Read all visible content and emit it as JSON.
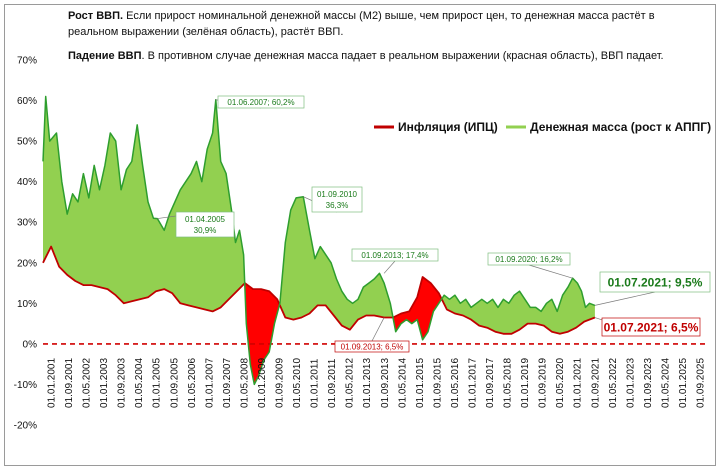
{
  "notes": {
    "growth_title": "Рост ВВП.",
    "growth_text": " Если прирост номинальной денежной массы (М2) выше, чем прирост цен,  то денежная масса растёт в реальном выражении (зелёная область), растёт ВВП.",
    "fall_title": "Падение ВВП",
    "fall_text": ". В противном случае денежная масса падает в реальном выражении (красная область), ВВП падает."
  },
  "chart_data": {
    "type": "line",
    "title": "",
    "xlabel": "",
    "ylabel": "",
    "ylim": [
      -20,
      70
    ],
    "yticks": [
      -20,
      -10,
      0,
      10,
      20,
      30,
      40,
      50,
      60,
      70
    ],
    "ytick_labels": [
      "-20%",
      "-10%",
      "0%",
      "10%",
      "20%",
      "30%",
      "40%",
      "50%",
      "60%",
      "70%"
    ],
    "xlim": [
      2001.0,
      2025.7
    ],
    "xtick_labels": [
      "01.01.2001",
      "01.09.2001",
      "01.05.2002",
      "01.01.2003",
      "01.09.2003",
      "01.05.2004",
      "01.01.2005",
      "01.09.2005",
      "01.05.2006",
      "01.01.2007",
      "01.09.2007",
      "01.05.2008",
      "01.01.2009",
      "01.09.2009",
      "01.05.2010",
      "01.01.2011",
      "01.09.2011",
      "01.05.2012",
      "01.01.2013",
      "01.09.2013",
      "01.05.2014",
      "01.01.2015",
      "01.09.2015",
      "01.05.2016",
      "01.01.2017",
      "01.09.2017",
      "01.05.2018",
      "01.01.2019",
      "01.09.2019",
      "01.05.2020",
      "01.01.2021",
      "01.09.2021",
      "01.05.2022",
      "01.01.2023",
      "01.09.2023",
      "01.05.2024",
      "01.01.2025",
      "01.09.2025"
    ],
    "grid": false,
    "legend_position": "top-right",
    "series": [
      {
        "name": "Инфляция (ИПЦ)",
        "color": "#c00000",
        "x": [
          2001.0,
          2001.3,
          2001.6,
          2001.9,
          2002.2,
          2002.5,
          2002.8,
          2003.1,
          2003.4,
          2003.7,
          2004.0,
          2004.3,
          2004.6,
          2004.9,
          2005.2,
          2005.5,
          2005.8,
          2006.1,
          2006.4,
          2006.7,
          2007.0,
          2007.3,
          2007.6,
          2007.9,
          2008.2,
          2008.5,
          2008.8,
          2009.1,
          2009.4,
          2009.7,
          2010.0,
          2010.3,
          2010.6,
          2010.9,
          2011.2,
          2011.5,
          2011.8,
          2012.1,
          2012.4,
          2012.7,
          2013.0,
          2013.3,
          2013.67,
          2014.0,
          2014.3,
          2014.6,
          2014.9,
          2015.1,
          2015.4,
          2015.7,
          2016.0,
          2016.3,
          2016.6,
          2016.9,
          2017.2,
          2017.5,
          2017.8,
          2018.1,
          2018.4,
          2018.7,
          2019.0,
          2019.3,
          2019.6,
          2019.9,
          2020.2,
          2020.5,
          2020.8,
          2021.1,
          2021.5
        ],
        "values": [
          20,
          24,
          19,
          17,
          15.5,
          14.5,
          14.5,
          14,
          13.5,
          12,
          10,
          10.5,
          11,
          11.5,
          13,
          13.5,
          12.5,
          10,
          9.5,
          9,
          8.5,
          8,
          9,
          11,
          13,
          15,
          13.5,
          13.5,
          13,
          11,
          6.5,
          6,
          6.5,
          7.5,
          9.5,
          9.5,
          7,
          4.5,
          3.5,
          6,
          7,
          7,
          6.5,
          6.5,
          7.5,
          8,
          11.5,
          16.5,
          15,
          12.5,
          8.5,
          7.5,
          7,
          6,
          4.5,
          4,
          3,
          2.5,
          2.5,
          3.5,
          5,
          5,
          4.5,
          3,
          2.5,
          3,
          4,
          5.5,
          6.5
        ]
      },
      {
        "name": "Денежная масса (рост к АППГ)",
        "color": "#2e9e2e",
        "fill": "#92d050",
        "x": [
          2001.0,
          2001.1,
          2001.25,
          2001.5,
          2001.7,
          2001.9,
          2002.1,
          2002.3,
          2002.5,
          2002.7,
          2002.9,
          2003.1,
          2003.3,
          2003.5,
          2003.7,
          2003.9,
          2004.1,
          2004.3,
          2004.5,
          2004.7,
          2004.9,
          2005.1,
          2005.25,
          2005.5,
          2005.7,
          2005.9,
          2006.1,
          2006.3,
          2006.5,
          2006.7,
          2006.9,
          2007.1,
          2007.3,
          2007.42,
          2007.6,
          2007.8,
          2008.0,
          2008.15,
          2008.3,
          2008.45,
          2008.55,
          2008.7,
          2008.85,
          2009.0,
          2009.2,
          2009.4,
          2009.6,
          2009.8,
          2010.0,
          2010.2,
          2010.4,
          2010.67,
          2010.9,
          2011.1,
          2011.3,
          2011.5,
          2011.7,
          2011.9,
          2012.1,
          2012.3,
          2012.5,
          2012.7,
          2012.9,
          2013.1,
          2013.3,
          2013.5,
          2013.67,
          2013.9,
          2014.1,
          2014.3,
          2014.5,
          2014.7,
          2014.9,
          2015.1,
          2015.3,
          2015.5,
          2015.7,
          2015.9,
          2016.1,
          2016.3,
          2016.5,
          2016.7,
          2016.9,
          2017.1,
          2017.3,
          2017.5,
          2017.7,
          2017.9,
          2018.1,
          2018.3,
          2018.5,
          2018.7,
          2018.9,
          2019.1,
          2019.3,
          2019.5,
          2019.7,
          2019.9,
          2020.1,
          2020.3,
          2020.5,
          2020.67,
          2020.85,
          2021.0,
          2021.15,
          2021.3,
          2021.5
        ],
        "values": [
          45,
          61,
          50,
          52,
          40,
          32,
          37,
          35,
          42,
          36,
          44,
          38,
          44,
          52,
          50,
          38,
          43,
          45,
          54,
          44,
          35,
          31,
          30.9,
          28,
          32,
          35,
          38,
          40,
          42,
          45,
          40,
          48,
          52,
          60.2,
          45,
          42,
          33,
          25,
          28,
          22,
          5,
          -5,
          -10,
          -8,
          -4,
          -2,
          5,
          10,
          25,
          33,
          36,
          36.3,
          28,
          21,
          24,
          22,
          20,
          16,
          13,
          11,
          10,
          11,
          14,
          15,
          16,
          17.4,
          15,
          10,
          3,
          5,
          6,
          5,
          6,
          1,
          3,
          8,
          10,
          12,
          11,
          12,
          10,
          11,
          9,
          10,
          11,
          10,
          11,
          9,
          11,
          10,
          12,
          13,
          11,
          9,
          9,
          8,
          10,
          11,
          8,
          12,
          14,
          16.2,
          15,
          13,
          9,
          10,
          9.5
        ]
      }
    ],
    "reference_line": {
      "y": 0,
      "color": "#d00000",
      "style": "dashed"
    },
    "annotations": [
      {
        "text": "01.06.2007; 60,2%",
        "x": 2007.42,
        "y": 60.2,
        "color": "#1a7a1a"
      },
      {
        "text": "01.04.2005",
        "text2": "30,9%",
        "x": 2005.25,
        "y": 30.9,
        "color": "#1a7a1a"
      },
      {
        "text": "01.09.2010",
        "text2": "36,3%",
        "x": 2010.67,
        "y": 36.3,
        "color": "#1a7a1a"
      },
      {
        "text": "01.09.2013; 17,4%",
        "x": 2013.67,
        "y": 17.4,
        "color": "#1a7a1a"
      },
      {
        "text": "01.09.2013; 6,5%",
        "x": 2013.67,
        "y": 6.5,
        "color": "#c00000"
      },
      {
        "text": "01.09.2020; 16,2%",
        "x": 2020.67,
        "y": 16.2,
        "color": "#1a7a1a"
      },
      {
        "text": "01.07.2021; 9,5%",
        "x": 2021.5,
        "y": 9.5,
        "color": "#1a7a1a"
      },
      {
        "text": "01.07.2021; 6,5%",
        "x": 2021.5,
        "y": 6.5,
        "color": "#c00000"
      }
    ]
  }
}
